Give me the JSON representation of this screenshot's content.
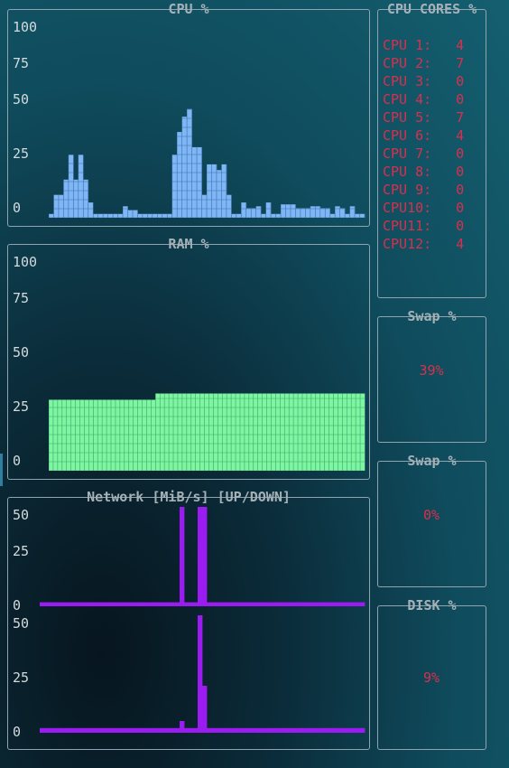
{
  "cpu_panel": {
    "title": "CPU %",
    "y_ticks": [
      "100",
      "75",
      "50",
      "25",
      "0"
    ]
  },
  "ram_panel": {
    "title": "RAM %",
    "y_ticks": [
      "100",
      "75",
      "50",
      "25",
      "0"
    ]
  },
  "network_panel": {
    "title": "Network [MiB/s] [UP/DOWN]",
    "y_ticks_top": [
      "50",
      "25",
      "0"
    ],
    "y_ticks_bottom": [
      "50",
      "25",
      "0"
    ]
  },
  "cores_panel": {
    "title": "CPU CORES %",
    "cores": [
      {
        "label": "CPU 1:",
        "value": "4"
      },
      {
        "label": "CPU 2:",
        "value": "7"
      },
      {
        "label": "CPU 3:",
        "value": "0"
      },
      {
        "label": "CPU 4:",
        "value": "0"
      },
      {
        "label": "CPU 5:",
        "value": "7"
      },
      {
        "label": "CPU 6:",
        "value": "4"
      },
      {
        "label": "CPU 7:",
        "value": "0"
      },
      {
        "label": "CPU 8:",
        "value": "0"
      },
      {
        "label": "CPU 9:",
        "value": "0"
      },
      {
        "label": "CPU10:",
        "value": "0"
      },
      {
        "label": "CPU11:",
        "value": "0"
      },
      {
        "label": "CPU12:",
        "value": "4"
      }
    ]
  },
  "swap_panel_1": {
    "title": "Swap %",
    "value": "39%"
  },
  "swap_panel_2": {
    "title": "Swap %",
    "value": "0%"
  },
  "disk_panel": {
    "title": "DISK %",
    "value": "9%"
  },
  "colors": {
    "cpu_fill": "#7eb6f6",
    "cpu_grid": "#3f6ea8",
    "ram_fill": "#7ef5a0",
    "ram_grid": "#3aa769",
    "net": "#9b1cf0",
    "core_text": "#d8304e",
    "title_text": "#a6b1b7"
  },
  "chart_data": [
    {
      "type": "area",
      "name_ref": "cpu_panel",
      "ylim": [
        0,
        100
      ],
      "values": [
        2,
        12,
        12,
        20,
        33,
        20,
        33,
        20,
        8,
        2,
        2,
        2,
        2,
        2,
        2,
        6,
        4,
        4,
        2,
        2,
        2,
        2,
        2,
        2,
        2,
        33,
        45,
        53,
        57,
        37,
        37,
        12,
        28,
        28,
        25,
        28,
        12,
        2,
        2,
        8,
        5,
        5,
        6,
        2,
        8,
        2,
        2,
        7,
        7,
        7,
        5,
        5,
        5,
        6,
        6,
        5,
        5,
        2,
        6,
        5,
        2,
        6,
        2,
        2
      ]
    },
    {
      "type": "area",
      "name_ref": "ram_panel",
      "ylim": [
        0,
        100
      ],
      "values": [
        34,
        34,
        34,
        34,
        34,
        34,
        34,
        34,
        34,
        34,
        34,
        34,
        34,
        34,
        34,
        34,
        34,
        34,
        34,
        34,
        34,
        34,
        34,
        34,
        37,
        37,
        37,
        37,
        37,
        37,
        37,
        37,
        37,
        37,
        37,
        37,
        37,
        37,
        37,
        37,
        37,
        37,
        37,
        37,
        37,
        37,
        37,
        37,
        37,
        37,
        37,
        37,
        37,
        37,
        37,
        37,
        37,
        37,
        37,
        37,
        37,
        37,
        37,
        37,
        37,
        37,
        37,
        37,
        37,
        37,
        37
      ]
    },
    {
      "type": "bar",
      "name_ref": "network_up",
      "ylim": [
        0,
        50
      ],
      "values": [
        2,
        2,
        2,
        2,
        2,
        2,
        2,
        2,
        2,
        2,
        2,
        2,
        2,
        2,
        2,
        2,
        2,
        2,
        2,
        2,
        2,
        2,
        2,
        2,
        2,
        2,
        2,
        2,
        2,
        2,
        2,
        50,
        2,
        2,
        2,
        50,
        50,
        2,
        2,
        2,
        2,
        2,
        2,
        2,
        2,
        2,
        2,
        2,
        2,
        2,
        2,
        2,
        2,
        2,
        2,
        2,
        2,
        2,
        2,
        2,
        2,
        2,
        2,
        2,
        2,
        2,
        2,
        2,
        2,
        2,
        2,
        2
      ]
    },
    {
      "type": "bar",
      "name_ref": "network_down",
      "ylim": [
        0,
        50
      ],
      "values": [
        2,
        2,
        2,
        2,
        2,
        2,
        2,
        2,
        2,
        2,
        2,
        2,
        2,
        2,
        2,
        2,
        2,
        2,
        2,
        2,
        2,
        2,
        2,
        2,
        2,
        2,
        2,
        2,
        2,
        2,
        2,
        5,
        2,
        2,
        2,
        50,
        20,
        2,
        2,
        2,
        2,
        2,
        2,
        2,
        2,
        2,
        2,
        2,
        2,
        2,
        2,
        2,
        2,
        2,
        2,
        2,
        2,
        2,
        2,
        2,
        2,
        2,
        2,
        2,
        2,
        2,
        2,
        2,
        2,
        2,
        2,
        2
      ]
    }
  ]
}
